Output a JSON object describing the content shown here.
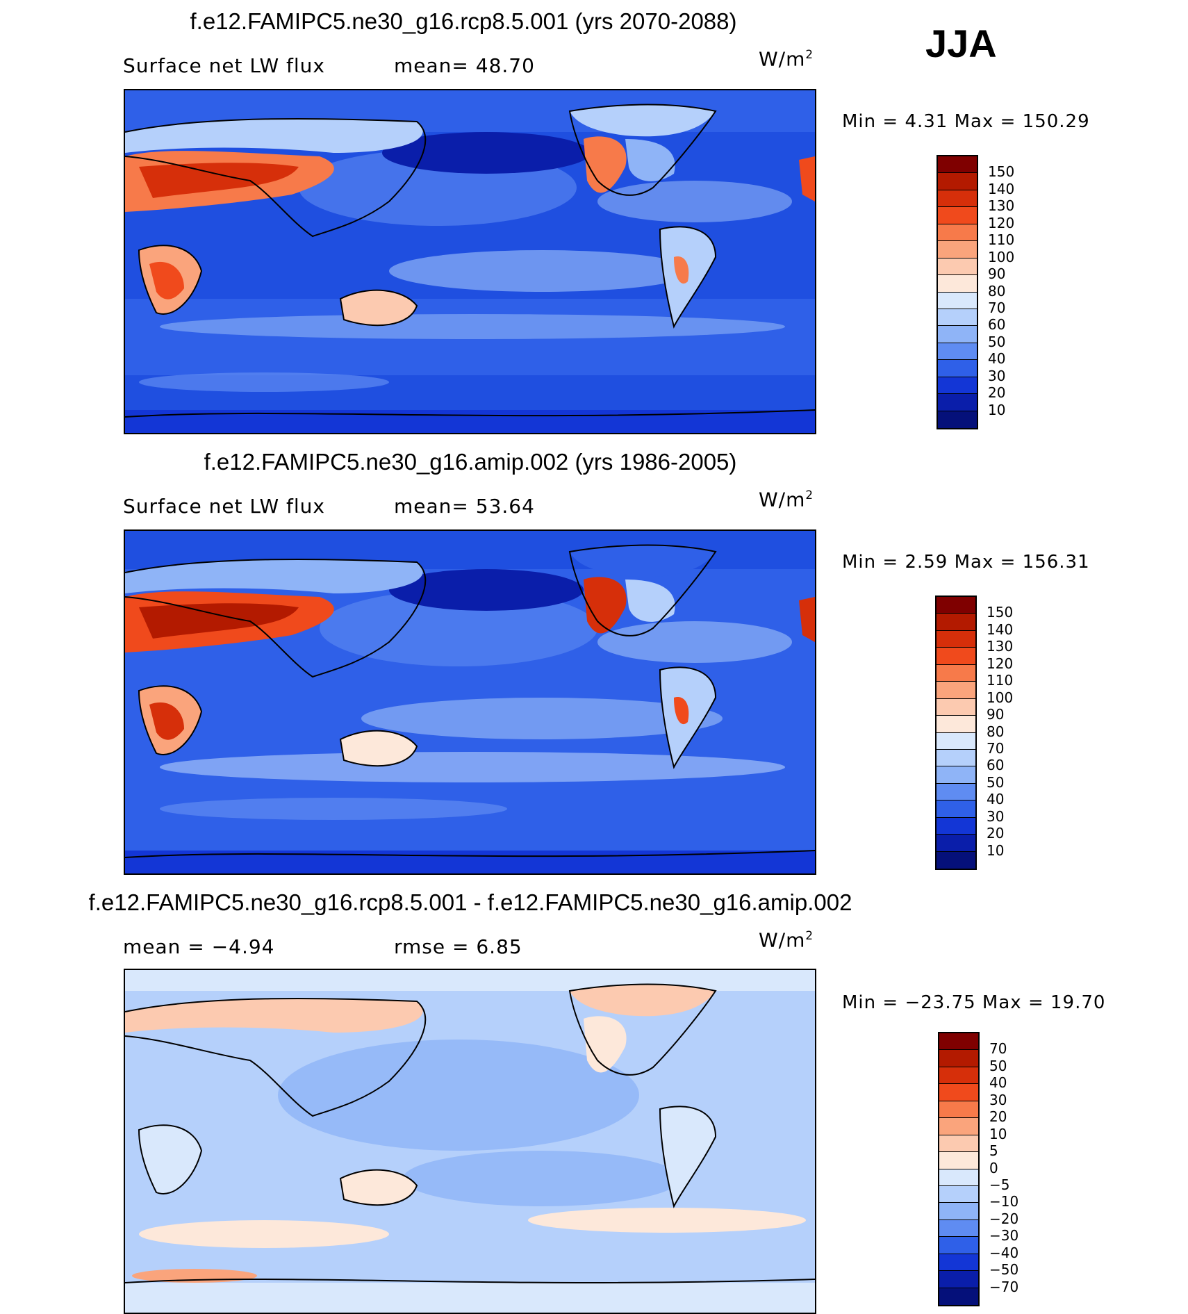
{
  "season": "JJA",
  "panels": [
    {
      "title": "f.e12.FAMIPC5.ne30_g16.rcp8.5.001 (yrs 2070-2088)",
      "left_label": "Surface net LW flux",
      "mid_label": "mean=  48.70",
      "units": "W/m",
      "units_sup": "2",
      "minmax": "Min =   4.31 Max = 150.29",
      "map": "projection run 2070-2088"
    },
    {
      "title": "f.e12.FAMIPC5.ne30_g16.amip.002 (yrs 1986-2005)",
      "left_label": "Surface net LW flux",
      "mid_label": "mean=  53.64",
      "units": "W/m",
      "units_sup": "2",
      "minmax": "Min =   2.59 Max = 156.31",
      "map": "control run 1986-2005"
    },
    {
      "title": "f.e12.FAMIPC5.ne30_g16.rcp8.5.001 - f.e12.FAMIPC5.ne30_g16.amip.002",
      "left_label": "mean =  −4.94",
      "mid_label": "rmse =   6.85",
      "units": "W/m",
      "units_sup": "2",
      "minmax": "Min = −23.75 Max =  19.70",
      "map": "difference"
    }
  ],
  "colorbars": {
    "abs": {
      "labels": [
        "150",
        "140",
        "130",
        "120",
        "110",
        "100",
        "90",
        "80",
        "70",
        "60",
        "50",
        "40",
        "30",
        "20",
        "10"
      ],
      "colors": [
        "#7f0000",
        "#b31a00",
        "#d62f0a",
        "#f04a1c",
        "#f77a4a",
        "#faa47c",
        "#fccab0",
        "#fde8da",
        "#d9e8fc",
        "#b5d0fb",
        "#8fb4f7",
        "#5f8cf2",
        "#2f60e8",
        "#1336d6",
        "#0a1eaa",
        "#05107a"
      ]
    },
    "diff": {
      "labels": [
        "70",
        "50",
        "40",
        "30",
        "20",
        "10",
        "5",
        "0",
        "−5",
        "−10",
        "−20",
        "−30",
        "−40",
        "−50",
        "−70"
      ],
      "colors": [
        "#7f0000",
        "#b31a00",
        "#d62f0a",
        "#f04a1c",
        "#f77a4a",
        "#faa47c",
        "#fccab0",
        "#fde8da",
        "#d9e8fc",
        "#b5d0fb",
        "#8fb4f7",
        "#5f8cf2",
        "#2f60e8",
        "#1336d6",
        "#0a1eaa",
        "#05107a"
      ]
    }
  }
}
